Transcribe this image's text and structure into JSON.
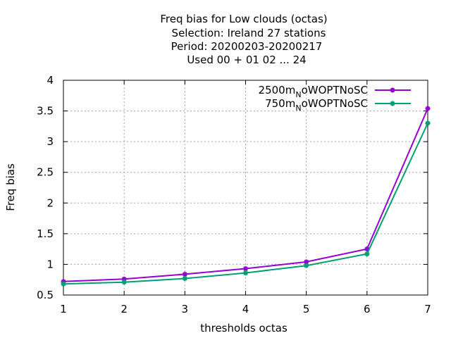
{
  "chart_data": {
    "type": "line",
    "title_lines": [
      "Freq bias  for Low clouds (octas)",
      "Selection: Ireland      27 stations",
      "Period: 20200203-20200217",
      "Used  00 + 01 02 ... 24"
    ],
    "xlabel": "thresholds octas",
    "ylabel": "Freq bias",
    "x": [
      1,
      2,
      3,
      4,
      5,
      6,
      7
    ],
    "xlim": [
      1,
      7
    ],
    "ylim": [
      0.5,
      4
    ],
    "xticks": [
      1,
      2,
      3,
      4,
      5,
      6,
      7
    ],
    "yticks": [
      0.5,
      1,
      1.5,
      2,
      2.5,
      3,
      3.5,
      4
    ],
    "ytick_labels": [
      "0.5",
      "1",
      "1.5",
      "2",
      "2.5",
      "3",
      "3.5",
      "4"
    ],
    "grid": true,
    "legend_position": "top-right",
    "series": [
      {
        "name_main": "2500m",
        "name_sub": "N",
        "name_rest": "oWOPTNoSC",
        "color": "#9400d3",
        "values": [
          0.72,
          0.76,
          0.84,
          0.93,
          1.04,
          1.25,
          3.54
        ]
      },
      {
        "name_main": "750m",
        "name_sub": "N",
        "name_rest": "oWOPTNoSC",
        "color": "#009e73",
        "values": [
          0.68,
          0.71,
          0.77,
          0.86,
          0.98,
          1.17,
          3.3
        ]
      }
    ]
  }
}
